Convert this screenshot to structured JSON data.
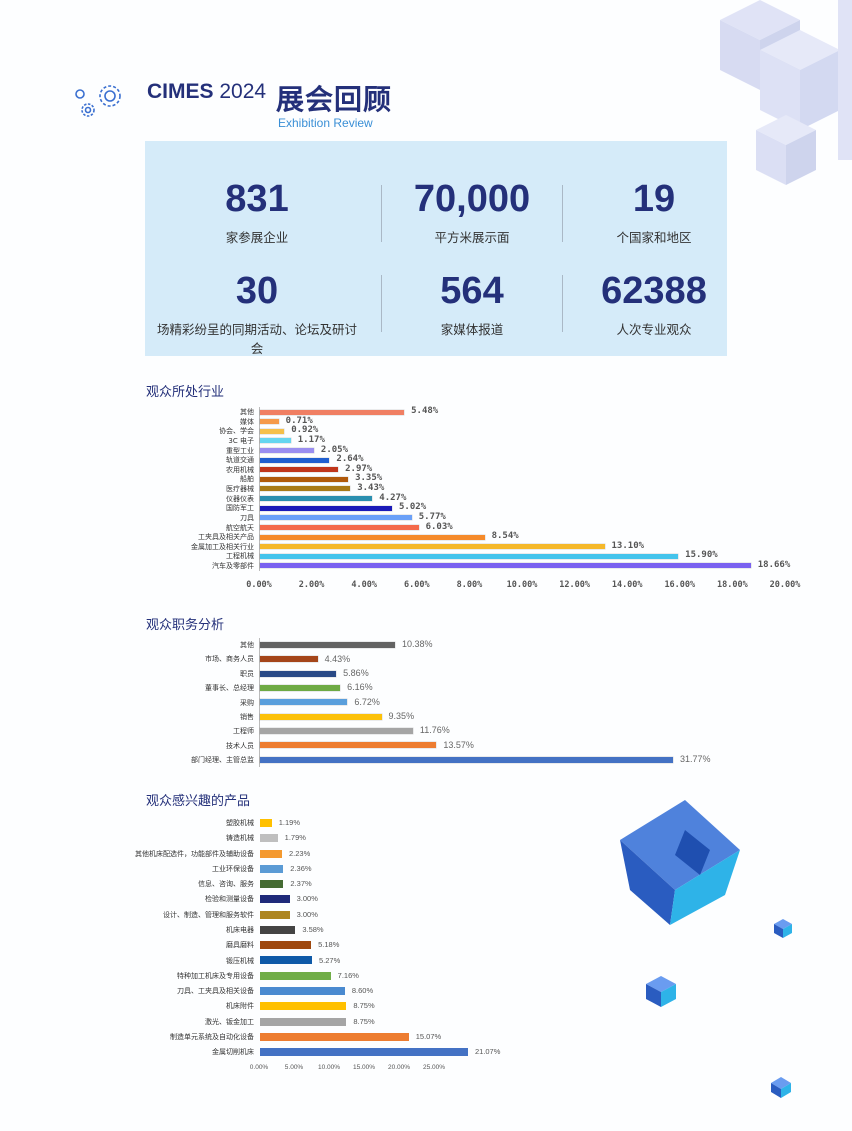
{
  "header": {
    "brand": "CIMES",
    "year": "2024",
    "title_cn": "展会回顾",
    "title_en": "Exhibition Review"
  },
  "stats": [
    {
      "value": "831",
      "label": "家参展企业"
    },
    {
      "value": "70,000",
      "label": "平方米展示面"
    },
    {
      "value": "19",
      "label": "个国家和地区"
    },
    {
      "value": "30",
      "label": "场精彩纷呈的同期活动、论坛及研讨会"
    },
    {
      "value": "564",
      "label": "家媒体报道"
    },
    {
      "value": "62388",
      "label": "人次专业观众"
    }
  ],
  "chart_data": [
    {
      "type": "bar",
      "orientation": "horizontal",
      "title": "观众所处行业",
      "categories": [
        "其他",
        "媒体",
        "协会、学会",
        "3C 电子",
        "重型工业",
        "轨道交通",
        "农用机械",
        "船舶",
        "医疗器械",
        "仪器仪表",
        "国防军工",
        "刀具",
        "航空航天",
        "工夹具及相关产品",
        "金属加工及相关行业",
        "工程机械",
        "汽车及零部件"
      ],
      "values": [
        5.48,
        0.71,
        0.92,
        1.17,
        2.05,
        2.64,
        2.97,
        3.35,
        3.43,
        4.27,
        5.02,
        5.77,
        6.03,
        8.54,
        13.1,
        15.9,
        18.66
      ],
      "labels": [
        "5.48%",
        "0.71%",
        "0.92%",
        "1.17%",
        "2.05%",
        "2.64%",
        "2.97%",
        "3.35%",
        "3.43%",
        "4.27%",
        "5.02%",
        "5.77%",
        "6.03%",
        "8.54%",
        "13.10%",
        "15.90%",
        "18.66%"
      ],
      "colors": [
        "#f07f63",
        "#f59a4a",
        "#f5c04a",
        "#66d6f0",
        "#9a8ef0",
        "#1f5fd0",
        "#c0361c",
        "#b05a0c",
        "#a87a18",
        "#2a8fb0",
        "#1a1ab8",
        "#6aa0f8",
        "#f46a4a",
        "#f58a2a",
        "#f5b82a",
        "#44c4ec",
        "#7a62f0"
      ],
      "xticks": [
        "0.00%",
        "2.00%",
        "4.00%",
        "6.00%",
        "8.00%",
        "10.00%",
        "12.00%",
        "14.00%",
        "16.00%",
        "18.00%",
        "20.00%"
      ],
      "xlim": [
        0,
        20
      ],
      "grid": false
    },
    {
      "type": "bar",
      "orientation": "horizontal",
      "title": "观众职务分析",
      "categories": [
        "其他",
        "市场、商务人员",
        "职员",
        "董事长、总经理",
        "采购",
        "销售",
        "工程师",
        "技术人员",
        "部门经理、主管总监"
      ],
      "values": [
        10.38,
        4.43,
        5.86,
        6.16,
        6.72,
        9.35,
        11.76,
        13.57,
        31.77
      ],
      "labels": [
        "10.38%",
        "4.43%",
        "5.86%",
        "6.16%",
        "6.72%",
        "9.35%",
        "11.76%",
        "13.57%",
        "31.77%"
      ],
      "colors": [
        "#636363",
        "#a5461a",
        "#2a4a86",
        "#6eaa44",
        "#5a9fdc",
        "#fcc10a",
        "#a5a5a5",
        "#ed7d31",
        "#4472c4"
      ],
      "grid": false
    },
    {
      "type": "bar",
      "orientation": "horizontal",
      "title": "观众感兴趣的产品",
      "categories": [
        "塑胶机械",
        "铸造机械",
        "其他机床配选件，功能部件及辅助设备",
        "工业环保设备",
        "信息、咨询、服务",
        "检验和测量设备",
        "设计、制造、管理和服务软件",
        "机床电器",
        "磨具磨料",
        "锻压机械",
        "特种加工机床及专用设备",
        "刀具、工夹具及相关设备",
        "机床附件",
        "激光、钣金加工",
        "制造单元系统及自动化设备",
        "金属切削机床"
      ],
      "values": [
        1.19,
        1.79,
        2.23,
        2.36,
        2.37,
        3.0,
        3.0,
        3.58,
        5.18,
        5.27,
        7.16,
        8.6,
        8.75,
        8.75,
        15.07,
        21.07
      ],
      "labels": [
        "1.19%",
        "1.79%",
        "2.23%",
        "2.36%",
        "2.37%",
        "3.00%",
        "3.00%",
        "3.58%",
        "5.18%",
        "5.27%",
        "7.16%",
        "8.60%",
        "8.75%",
        "8.75%",
        "15.07%",
        "21.07%"
      ],
      "colors": [
        "#ffc000",
        "#bfbfbf",
        "#f4992f",
        "#5b9bd5",
        "#456b33",
        "#1f2a7a",
        "#ad8522",
        "#444444",
        "#9e480e",
        "#0f5aa8",
        "#70ad47",
        "#4a8ad0",
        "#ffc000",
        "#a5a5a5",
        "#ed7d31",
        "#4472c4"
      ],
      "xticks": [
        "0.00%",
        "5.00%",
        "10.00%",
        "15.00%",
        "20.00%",
        "25.00%"
      ],
      "grid": false
    }
  ]
}
